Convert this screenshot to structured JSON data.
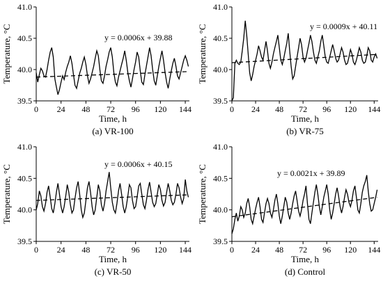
{
  "chart_data": [
    {
      "type": "line",
      "caption": "(a) VR-100",
      "xlabel": "Time, h",
      "ylabel": "Temperature, °C",
      "xlim": [
        0,
        148
      ],
      "ylim": [
        39.5,
        41.0
      ],
      "xticks": [
        0,
        24,
        48,
        72,
        96,
        120,
        144
      ],
      "yticks": [
        "39.5",
        "40.0",
        "40.5",
        "41.0"
      ],
      "equation": "y = 0.0006x + 39.88",
      "trend": {
        "slope": 0.0006,
        "intercept": 39.88
      },
      "series": [
        {
          "style": "solid",
          "x": [
            0,
            1.5,
            3,
            4.5,
            6,
            7.5,
            9,
            10.5,
            12,
            13.5,
            15,
            16.5,
            18,
            19.5,
            21,
            22.5,
            24,
            25.5,
            27,
            28.5,
            30,
            31.5,
            33,
            34.5,
            36,
            37.5,
            39,
            40.5,
            42,
            43.5,
            45,
            46.5,
            48,
            49.5,
            51,
            52.5,
            54,
            55.5,
            57,
            58.5,
            60,
            61.5,
            63,
            64.5,
            66,
            67.5,
            69,
            70.5,
            72,
            73.5,
            75,
            76.5,
            78,
            79.5,
            81,
            82.5,
            84,
            85.5,
            87,
            88.5,
            90,
            91.5,
            93,
            94.5,
            96,
            97.5,
            99,
            100.5,
            102,
            103.5,
            105,
            106.5,
            108,
            109.5,
            111,
            112.5,
            114,
            115.5,
            117,
            118.5,
            120,
            121.5,
            123,
            124.5,
            126,
            127.5,
            129,
            130.5,
            132,
            133.5,
            135,
            136.5,
            138,
            139.5,
            141,
            142.5,
            144,
            145.5,
            147
          ],
          "y": [
            39.95,
            39.8,
            39.92,
            40.02,
            39.98,
            39.9,
            39.88,
            40.0,
            40.15,
            40.28,
            40.35,
            40.2,
            39.85,
            39.72,
            39.6,
            39.68,
            39.8,
            39.9,
            39.84,
            39.96,
            40.05,
            40.12,
            40.22,
            40.1,
            39.92,
            39.75,
            39.7,
            39.82,
            39.94,
            40.02,
            40.12,
            40.2,
            40.08,
            39.9,
            39.78,
            39.85,
            39.95,
            40.05,
            40.18,
            40.3,
            40.22,
            40.0,
            39.82,
            39.78,
            39.9,
            40.05,
            40.16,
            40.28,
            40.35,
            40.2,
            39.95,
            39.8,
            39.74,
            39.88,
            39.98,
            40.08,
            40.18,
            40.3,
            40.15,
            39.95,
            39.82,
            39.72,
            39.85,
            40.0,
            40.12,
            40.28,
            40.2,
            39.98,
            39.8,
            39.76,
            39.92,
            40.06,
            40.2,
            40.35,
            40.22,
            40.0,
            39.82,
            39.75,
            39.9,
            40.05,
            40.18,
            40.3,
            40.15,
            39.95,
            39.8,
            39.7,
            39.85,
            39.98,
            40.1,
            40.18,
            40.05,
            39.9,
            39.85,
            39.95,
            40.05,
            40.15,
            40.22,
            40.15,
            40.05
          ]
        },
        {
          "style": "dashed",
          "x": [
            0,
            147
          ],
          "y": [
            39.88,
            39.968
          ]
        }
      ]
    },
    {
      "type": "line",
      "caption": "(b) VR-75",
      "xlabel": "Time, h",
      "ylabel": "Temperature, °C",
      "xlim": [
        0,
        148
      ],
      "ylim": [
        39.5,
        41.0
      ],
      "xticks": [
        0,
        24,
        48,
        72,
        96,
        120,
        144
      ],
      "yticks": [
        "39.5",
        "40.0",
        "40.5",
        "41.0"
      ],
      "equation": "y = 0.0009x + 40.11",
      "trend": {
        "slope": 0.0009,
        "intercept": 40.11
      },
      "series": [
        {
          "style": "solid",
          "x": [
            0,
            1.5,
            3,
            4.5,
            6,
            7.5,
            9,
            10.5,
            12,
            13.5,
            15,
            16.5,
            18,
            19.5,
            21,
            22.5,
            24,
            25.5,
            27,
            28.5,
            30,
            31.5,
            33,
            34.5,
            36,
            37.5,
            39,
            40.5,
            42,
            43.5,
            45,
            46.5,
            48,
            49.5,
            51,
            52.5,
            54,
            55.5,
            57,
            58.5,
            60,
            61.5,
            63,
            64.5,
            66,
            67.5,
            69,
            70.5,
            72,
            73.5,
            75,
            76.5,
            78,
            79.5,
            81,
            82.5,
            84,
            85.5,
            87,
            88.5,
            90,
            91.5,
            93,
            94.5,
            96,
            97.5,
            99,
            100.5,
            102,
            103.5,
            105,
            106.5,
            108,
            109.5,
            111,
            112.5,
            114,
            115.5,
            117,
            118.5,
            120,
            121.5,
            123,
            124.5,
            126,
            127.5,
            129,
            130.5,
            132,
            133.5,
            135,
            136.5,
            138,
            139.5,
            141,
            142.5,
            144,
            145.5,
            147
          ],
          "y": [
            39.5,
            39.55,
            40.1,
            40.15,
            40.1,
            40.08,
            40.12,
            40.3,
            40.5,
            40.78,
            40.55,
            40.25,
            39.95,
            39.82,
            39.92,
            40.05,
            40.15,
            40.25,
            40.38,
            40.3,
            40.2,
            40.15,
            40.3,
            40.45,
            40.3,
            40.1,
            40.02,
            40.12,
            40.25,
            40.35,
            40.45,
            40.55,
            40.35,
            40.15,
            40.08,
            40.18,
            40.3,
            40.42,
            40.58,
            40.3,
            40.05,
            39.85,
            39.9,
            40.05,
            40.2,
            40.35,
            40.5,
            40.4,
            40.2,
            40.12,
            40.18,
            40.3,
            40.42,
            40.55,
            40.45,
            40.28,
            40.15,
            40.1,
            40.2,
            40.3,
            40.45,
            40.55,
            40.38,
            40.2,
            40.12,
            40.1,
            40.2,
            40.3,
            40.4,
            40.3,
            40.18,
            40.12,
            40.15,
            40.25,
            40.35,
            40.28,
            40.15,
            40.08,
            40.1,
            40.2,
            40.32,
            40.25,
            40.12,
            40.08,
            40.15,
            40.25,
            40.35,
            40.28,
            40.15,
            40.1,
            40.12,
            40.22,
            40.35,
            40.3,
            40.15,
            40.12,
            40.2,
            40.25,
            40.18
          ]
        },
        {
          "style": "dashed",
          "x": [
            0,
            147
          ],
          "y": [
            40.11,
            40.242
          ]
        }
      ]
    },
    {
      "type": "line",
      "caption": "(c) VR-50",
      "xlabel": "Time, h",
      "ylabel": "Temperature, °C",
      "xlim": [
        0,
        148
      ],
      "ylim": [
        39.5,
        41.0
      ],
      "xticks": [
        0,
        24,
        48,
        72,
        96,
        120,
        144
      ],
      "yticks": [
        "39.5",
        "40.0",
        "40.5",
        "41.0"
      ],
      "equation": "y = 0.0006x + 40.15",
      "trend": {
        "slope": 0.0006,
        "intercept": 40.15
      },
      "series": [
        {
          "style": "solid",
          "x": [
            0,
            1.5,
            3,
            4.5,
            6,
            7.5,
            9,
            10.5,
            12,
            13.5,
            15,
            16.5,
            18,
            19.5,
            21,
            22.5,
            24,
            25.5,
            27,
            28.5,
            30,
            31.5,
            33,
            34.5,
            36,
            37.5,
            39,
            40.5,
            42,
            43.5,
            45,
            46.5,
            48,
            49.5,
            51,
            52.5,
            54,
            55.5,
            57,
            58.5,
            60,
            61.5,
            63,
            64.5,
            66,
            67.5,
            69,
            70.5,
            72,
            73.5,
            75,
            76.5,
            78,
            79.5,
            81,
            82.5,
            84,
            85.5,
            87,
            88.5,
            90,
            91.5,
            93,
            94.5,
            96,
            97.5,
            99,
            100.5,
            102,
            103.5,
            105,
            106.5,
            108,
            109.5,
            111,
            112.5,
            114,
            115.5,
            117,
            118.5,
            120,
            121.5,
            123,
            124.5,
            126,
            127.5,
            129,
            130.5,
            132,
            133.5,
            135,
            136.5,
            138,
            139.5,
            141,
            142.5,
            144,
            145.5,
            147
          ],
          "y": [
            40.0,
            40.1,
            40.3,
            40.22,
            40.05,
            39.98,
            40.1,
            40.28,
            40.38,
            40.2,
            40.02,
            39.95,
            40.1,
            40.28,
            40.42,
            40.25,
            40.05,
            39.95,
            40.05,
            40.22,
            40.4,
            40.28,
            40.08,
            39.95,
            40.0,
            40.18,
            40.35,
            40.45,
            40.25,
            40.0,
            39.88,
            39.95,
            40.15,
            40.35,
            40.45,
            40.28,
            40.05,
            39.92,
            40.0,
            40.2,
            40.4,
            40.3,
            40.08,
            39.98,
            40.1,
            40.3,
            40.45,
            40.6,
            40.35,
            40.12,
            40.0,
            39.95,
            40.1,
            40.3,
            40.42,
            40.25,
            40.05,
            39.95,
            40.05,
            40.22,
            40.4,
            40.35,
            40.15,
            40.02,
            40.05,
            40.2,
            40.38,
            40.42,
            40.25,
            40.08,
            40.02,
            40.15,
            40.32,
            40.44,
            40.28,
            40.12,
            40.05,
            40.1,
            40.25,
            40.4,
            40.32,
            40.15,
            40.06,
            40.12,
            40.28,
            40.42,
            40.3,
            40.15,
            40.08,
            40.12,
            40.25,
            40.42,
            40.35,
            40.2,
            40.1,
            40.18,
            40.48,
            40.3,
            40.2
          ]
        },
        {
          "style": "dashed",
          "x": [
            0,
            147
          ],
          "y": [
            40.15,
            40.238
          ]
        }
      ]
    },
    {
      "type": "line",
      "caption": "(d) Control",
      "xlabel": "Time, h",
      "ylabel": "Temperature, °C",
      "xlim": [
        0,
        148
      ],
      "ylim": [
        39.5,
        41.0
      ],
      "xticks": [
        0,
        24,
        48,
        72,
        96,
        120,
        144
      ],
      "yticks": [
        "39.5",
        "40.0",
        "40.5",
        "41.0"
      ],
      "equation": "y = 0.0021x + 39.89",
      "trend": {
        "slope": 0.0021,
        "intercept": 39.89
      },
      "series": [
        {
          "style": "solid",
          "x": [
            0,
            1.5,
            3,
            4.5,
            6,
            7.5,
            9,
            10.5,
            12,
            13.5,
            15,
            16.5,
            18,
            19.5,
            21,
            22.5,
            24,
            25.5,
            27,
            28.5,
            30,
            31.5,
            33,
            34.5,
            36,
            37.5,
            39,
            40.5,
            42,
            43.5,
            45,
            46.5,
            48,
            49.5,
            51,
            52.5,
            54,
            55.5,
            57,
            58.5,
            60,
            61.5,
            63,
            64.5,
            66,
            67.5,
            69,
            70.5,
            72,
            73.5,
            75,
            76.5,
            78,
            79.5,
            81,
            82.5,
            84,
            85.5,
            87,
            88.5,
            90,
            91.5,
            93,
            94.5,
            96,
            97.5,
            99,
            100.5,
            102,
            103.5,
            105,
            106.5,
            108,
            109.5,
            111,
            112.5,
            114,
            115.5,
            117,
            118.5,
            120,
            121.5,
            123,
            124.5,
            126,
            127.5,
            129,
            130.5,
            132,
            133.5,
            135,
            136.5,
            138,
            139.5,
            141,
            142.5,
            144,
            145.5,
            147
          ],
          "y": [
            39.62,
            39.7,
            39.85,
            39.95,
            39.82,
            39.9,
            40.05,
            40.0,
            39.88,
            39.95,
            40.1,
            40.18,
            40.05,
            39.85,
            39.78,
            39.9,
            40.02,
            40.12,
            40.2,
            40.05,
            39.85,
            39.8,
            39.95,
            40.1,
            40.18,
            40.1,
            39.95,
            39.88,
            40.0,
            40.15,
            40.25,
            40.1,
            39.9,
            39.78,
            39.9,
            40.05,
            40.2,
            40.12,
            39.95,
            39.85,
            39.95,
            40.1,
            40.22,
            40.3,
            40.15,
            39.98,
            39.9,
            40.0,
            40.15,
            40.25,
            40.38,
            40.1,
            39.85,
            39.78,
            39.95,
            40.12,
            40.28,
            40.4,
            40.25,
            40.05,
            39.92,
            40.05,
            40.2,
            40.3,
            40.4,
            40.25,
            40.0,
            39.85,
            39.95,
            40.1,
            40.25,
            40.35,
            40.22,
            40.05,
            39.95,
            40.05,
            40.2,
            40.32,
            40.25,
            40.12,
            40.05,
            40.15,
            40.3,
            40.38,
            40.2,
            40.0,
            39.95,
            40.1,
            40.28,
            40.38,
            40.45,
            40.55,
            40.3,
            40.1,
            39.98,
            40.0,
            40.1,
            40.2,
            40.32
          ]
        },
        {
          "style": "dashed",
          "x": [
            0,
            147
          ],
          "y": [
            39.89,
            40.199
          ]
        }
      ]
    }
  ]
}
